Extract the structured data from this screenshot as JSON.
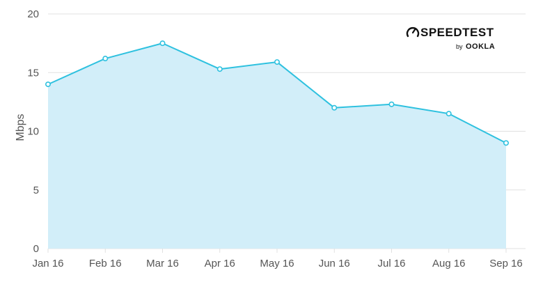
{
  "chart_data": {
    "type": "area",
    "categories": [
      "Jan 16",
      "Feb 16",
      "Mar 16",
      "Apr 16",
      "May 16",
      "Jun 16",
      "Jul 16",
      "Aug 16",
      "Sep 16"
    ],
    "series": [
      {
        "values": [
          14.0,
          16.2,
          17.5,
          15.3,
          15.9,
          12.0,
          12.3,
          11.5,
          9.0
        ]
      }
    ],
    "ylabel": "Mbps",
    "ylim": [
      0,
      20
    ],
    "yticks": [
      0,
      5,
      10,
      15,
      20
    ],
    "grid": true,
    "colors": {
      "line": "#2ec1df",
      "fill": "#d2eef9",
      "grid": "#e0e0e0"
    }
  },
  "logo": {
    "name": "SPEEDTEST",
    "by": "by",
    "brand": "OOKLA"
  }
}
